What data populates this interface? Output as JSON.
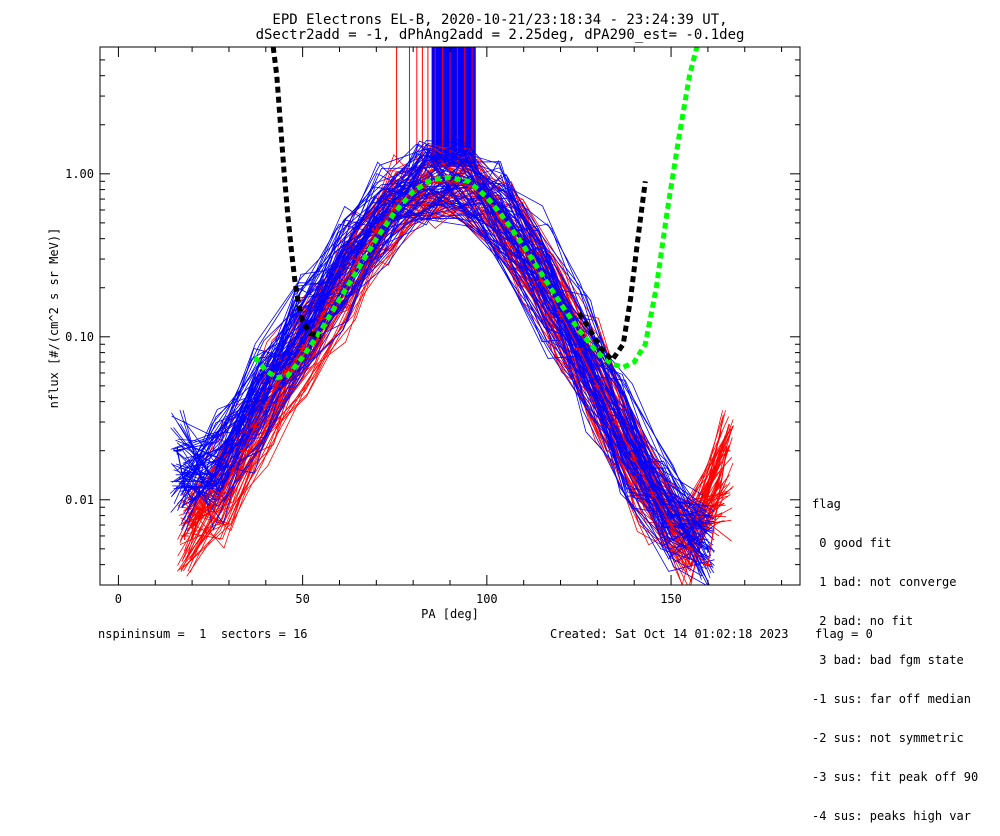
{
  "title_line1": "EPD Electrons EL-B, 2020-10-21/23:18:34 - 23:24:39 UT,",
  "title_line2": "dSectr2add = -1, dPhAng2add = 2.25deg, dPA290_est=  -0.1deg",
  "legend": {
    "title": "flag",
    "items": [
      " 0 good fit",
      " 1 bad: not converge",
      " 2 bad: no fit",
      " 3 bad: bad fgm state",
      "-1 sus: far off median",
      "-2 sus: not symmetric",
      "-3 sus: fit peak off 90",
      "-4 sus: peaks high var"
    ]
  },
  "footer": {
    "left": "nspininsum =  1  sectors = 16",
    "created": "Created: Sat Oct 14 01:02:18 2023",
    "flag": "flag = 0"
  },
  "chart_data": {
    "type": "line",
    "xlabel": "PA [deg]",
    "ylabel": "nflux [#/(cm^2 s sr MeV)]",
    "xlim": [
      -5,
      185
    ],
    "ylim": [
      0.003,
      6.0
    ],
    "yscale": "log",
    "xticks": [
      0,
      50,
      100,
      150
    ],
    "xtick_labels": [
      "0",
      "50",
      "100",
      "150"
    ],
    "yticks": [
      0.01,
      0.1,
      1.0
    ],
    "ytick_labels": [
      "0.01",
      "0.10",
      "1.00"
    ],
    "colors": {
      "series_a": "#ff0000",
      "series_b": "#0000ff",
      "fit_green": "#00ff00",
      "fit_black": "#000000"
    },
    "fit_green": {
      "x": [
        37,
        40,
        43,
        46,
        50,
        55,
        60,
        65,
        70,
        75,
        80,
        85,
        90,
        95,
        100,
        105,
        110,
        115,
        120,
        125,
        130,
        134,
        137,
        140,
        143,
        146,
        149,
        152,
        155,
        157
      ],
      "y": [
        0.075,
        0.062,
        0.056,
        0.058,
        0.075,
        0.11,
        0.17,
        0.26,
        0.4,
        0.58,
        0.78,
        0.92,
        0.95,
        0.9,
        0.72,
        0.52,
        0.36,
        0.24,
        0.16,
        0.11,
        0.08,
        0.068,
        0.065,
        0.07,
        0.09,
        0.2,
        0.6,
        1.6,
        4.0,
        6.0
      ]
    },
    "fit_black_left": {
      "x": [
        42,
        43,
        44,
        45,
        46,
        47,
        48,
        49,
        50,
        52,
        55
      ],
      "y": [
        6.0,
        4.0,
        2.0,
        1.0,
        0.55,
        0.33,
        0.21,
        0.155,
        0.125,
        0.105,
        0.1
      ]
    },
    "fit_black_right": {
      "x": [
        125,
        128,
        131,
        134,
        137,
        139,
        141,
        143
      ],
      "y": [
        0.14,
        0.11,
        0.085,
        0.072,
        0.09,
        0.17,
        0.4,
        0.9
      ]
    },
    "vertical_lines": {
      "red_x": [
        75.5,
        79,
        81,
        82.5,
        84,
        86,
        88,
        90,
        92,
        94,
        96
      ],
      "blue_x_range": [
        85,
        97
      ],
      "y_bottom": 1.1,
      "y_top": 6.0
    },
    "series_a": {
      "x": [
        18,
        20,
        22,
        25,
        28,
        31,
        34,
        37,
        40,
        43,
        46,
        50,
        55,
        60,
        65,
        70,
        75,
        80,
        85,
        90,
        95,
        100,
        105,
        110,
        115,
        120,
        125,
        130,
        135,
        140,
        145,
        150,
        155,
        160,
        165
      ],
      "y": [
        0.006,
        0.007,
        0.008,
        0.009,
        0.011,
        0.015,
        0.02,
        0.028,
        0.038,
        0.05,
        0.062,
        0.085,
        0.13,
        0.2,
        0.3,
        0.45,
        0.62,
        0.78,
        0.88,
        0.9,
        0.85,
        0.7,
        0.5,
        0.34,
        0.22,
        0.14,
        0.085,
        0.05,
        0.03,
        0.018,
        0.011,
        0.007,
        0.005,
        0.004,
        0.02
      ]
    },
    "series_b": {
      "x": [
        16,
        18,
        20,
        22,
        25,
        28,
        31,
        34,
        37,
        40,
        43,
        46,
        50,
        55,
        60,
        65,
        70,
        75,
        80,
        85,
        90,
        95,
        100,
        105,
        110,
        115,
        120,
        125,
        130,
        135,
        140,
        145,
        150,
        155,
        160
      ],
      "y": [
        0.02,
        0.012,
        0.01,
        0.011,
        0.013,
        0.016,
        0.022,
        0.03,
        0.04,
        0.052,
        0.065,
        0.08,
        0.11,
        0.16,
        0.24,
        0.36,
        0.52,
        0.7,
        0.85,
        0.93,
        0.95,
        0.9,
        0.74,
        0.54,
        0.37,
        0.24,
        0.15,
        0.09,
        0.055,
        0.033,
        0.02,
        0.012,
        0.008,
        0.006,
        0.005
      ]
    }
  }
}
